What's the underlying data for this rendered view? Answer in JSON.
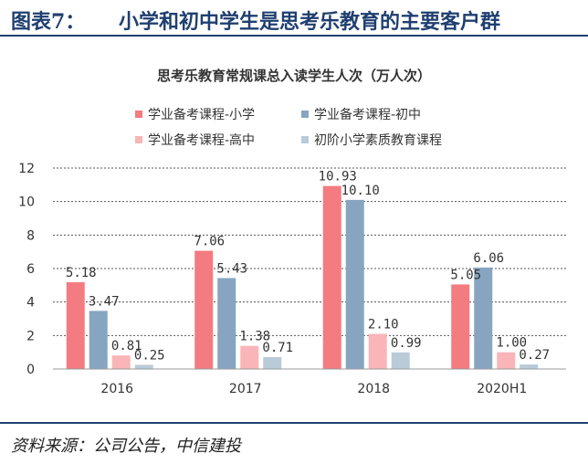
{
  "header": {
    "figure_label": "图表7：",
    "figure_title": "小学和初中学生是思考乐教育的主要客户群"
  },
  "source": "资料来源：公司公告，中信建投",
  "chart_data": {
    "type": "bar",
    "title": "思考乐教育常规课总入读学生人次（万人次）",
    "categories": [
      "2016",
      "2017",
      "2018",
      "2020H1"
    ],
    "ylim": [
      0,
      12
    ],
    "yticks": [
      0,
      2,
      4,
      6,
      8,
      10,
      12
    ],
    "grid": true,
    "legend_position": "top",
    "series": [
      {
        "name": "学业备考课程-小学",
        "color": "#f47b80",
        "values": [
          5.18,
          7.06,
          10.93,
          5.05
        ],
        "labels": [
          "5.18",
          "7.06",
          "10.93",
          "5.05"
        ]
      },
      {
        "name": "学业备考课程-初中",
        "color": "#87a5c0",
        "values": [
          3.47,
          5.43,
          10.1,
          6.06
        ],
        "labels": [
          "3.47",
          "5.43",
          "10.10",
          "6.06"
        ]
      },
      {
        "name": "学业备考课程-高中",
        "color": "#f9b5b8",
        "values": [
          0.81,
          1.38,
          2.1,
          1.0
        ],
        "labels": [
          "0.81",
          "1.38",
          "2.10",
          "1.00"
        ]
      },
      {
        "name": "初阶小学素质教育课程",
        "color": "#b9cad9",
        "values": [
          0.25,
          0.71,
          0.99,
          0.27
        ],
        "labels": [
          "0.25",
          "0.71",
          "0.99",
          "0.27"
        ]
      }
    ]
  }
}
